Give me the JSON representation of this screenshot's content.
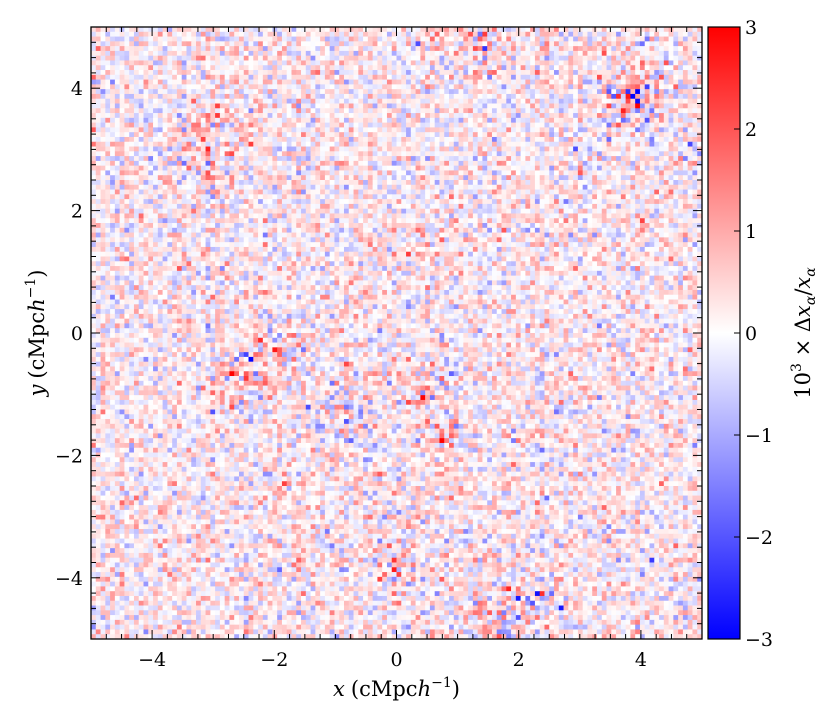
{
  "chart_data": {
    "type": "heatmap",
    "title": "",
    "xlabel": {
      "var": "x",
      "unit": "(cMpc",
      "unit_var": "h",
      "unit_exp": "−1",
      "close": ")"
    },
    "ylabel": {
      "var": "y",
      "unit": "(cMpc",
      "unit_var": "h",
      "unit_exp": "−1",
      "close": ")"
    },
    "xlim": [
      -5,
      5
    ],
    "ylim": [
      -5,
      5
    ],
    "x_ticks": [
      -4,
      -2,
      0,
      2,
      4
    ],
    "y_ticks": [
      -4,
      -2,
      0,
      2,
      4
    ],
    "x_tick_labels": [
      "−4",
      "−2",
      "0",
      "2",
      "4"
    ],
    "y_tick_labels": [
      "−4",
      "−2",
      "0",
      "2",
      "4"
    ],
    "grid": false,
    "colorbar": {
      "label": {
        "prefix": "10",
        "exp": "3",
        "mid": " × Δ",
        "var1": "x",
        "sub1": "α",
        "slash": "/",
        "var2": "x",
        "sub2": "α"
      },
      "range": [
        -3,
        3
      ],
      "ticks": [
        -3,
        -2,
        -1,
        0,
        1,
        2,
        3
      ],
      "tick_labels": [
        "−3",
        "−2",
        "−1",
        "0",
        "1",
        "2",
        "3"
      ],
      "colormap": "bwr",
      "colors": {
        "low": "#0000ff",
        "mid": "#ffffff",
        "high": "#ff0000"
      }
    },
    "field_description": "noise-dominated fractional difference field, mostly within ±1.5, faint coherent red/blue filament structures"
  }
}
